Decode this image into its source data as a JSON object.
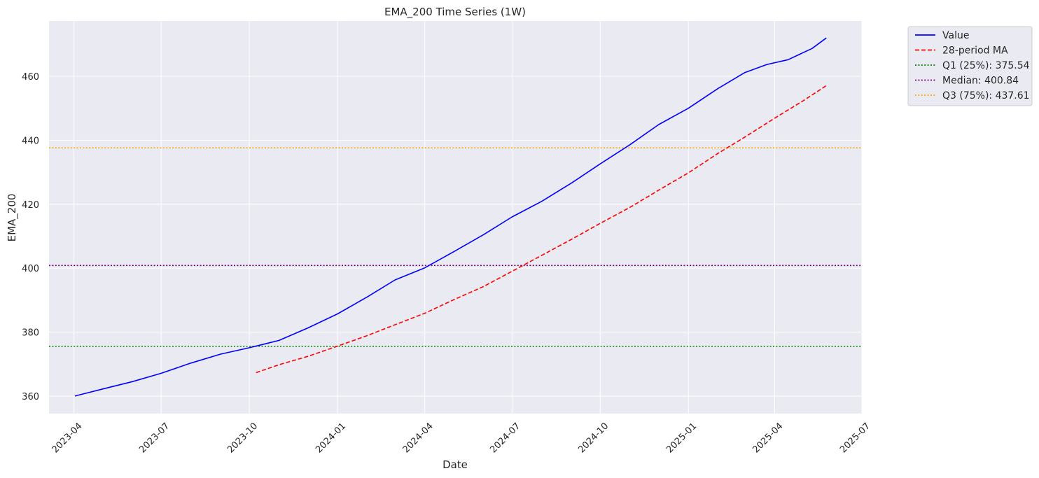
{
  "chart_data": {
    "type": "line",
    "title": "EMA_200 Time Series (1W)",
    "xlabel": "Date",
    "ylabel": "EMA_200",
    "xlim": [
      "2023-03-06",
      "2025-07-01"
    ],
    "ylim": [
      354.5,
      477.3
    ],
    "x_ticks": [
      "2023-04",
      "2023-07",
      "2023-10",
      "2024-01",
      "2024-04",
      "2024-07",
      "2024-10",
      "2025-01",
      "2025-04",
      "2025-07"
    ],
    "y_ticks": [
      360,
      380,
      400,
      420,
      440,
      460
    ],
    "grid": true,
    "legend_position": "outside-top-right",
    "series": [
      {
        "name": "Value",
        "color": "#0000ff",
        "style": "solid",
        "x": [
          "2023-04-02",
          "2023-05-01",
          "2023-06-01",
          "2023-07-01",
          "2023-08-01",
          "2023-09-01",
          "2023-10-01",
          "2023-11-01",
          "2023-12-01",
          "2024-01-01",
          "2024-02-01",
          "2024-03-01",
          "2024-04-01",
          "2024-05-01",
          "2024-06-01",
          "2024-07-01",
          "2024-08-01",
          "2024-09-01",
          "2024-10-01",
          "2024-11-01",
          "2024-12-01",
          "2025-01-01",
          "2025-02-01",
          "2025-03-01",
          "2025-03-24",
          "2025-04-15",
          "2025-05-10",
          "2025-05-25"
        ],
        "y": [
          360.0,
          362.2,
          364.5,
          367.1,
          370.3,
          373.1,
          375.1,
          377.4,
          381.3,
          385.7,
          391.0,
          396.3,
          400.1,
          405.1,
          410.4,
          416.0,
          420.9,
          426.6,
          432.6,
          438.6,
          444.9,
          450.0,
          456.2,
          461.2,
          463.7,
          465.2,
          468.7,
          472.0
        ]
      },
      {
        "name": "28-period MA",
        "color": "#ff0000",
        "style": "dashed",
        "x": [
          "2023-10-08",
          "2023-11-01",
          "2023-12-01",
          "2024-01-01",
          "2024-02-01",
          "2024-03-01",
          "2024-04-01",
          "2024-05-01",
          "2024-06-01",
          "2024-07-01",
          "2024-08-01",
          "2024-09-01",
          "2024-10-01",
          "2024-11-01",
          "2024-12-01",
          "2025-01-01",
          "2025-02-01",
          "2025-03-01",
          "2025-04-01",
          "2025-05-01",
          "2025-05-25"
        ],
        "y": [
          367.3,
          369.8,
          372.4,
          375.6,
          378.9,
          382.3,
          385.9,
          390.1,
          394.2,
          399.0,
          404.0,
          409.0,
          414.0,
          419.0,
          424.4,
          429.8,
          435.9,
          441.0,
          446.9,
          452.4,
          457.1
        ]
      }
    ],
    "reference_lines": [
      {
        "name": "Q1 (25%): 375.54",
        "value": 375.54,
        "color": "#008000",
        "style": "dotted"
      },
      {
        "name": "Median: 400.84",
        "value": 400.84,
        "color": "#800080",
        "style": "dotted"
      },
      {
        "name": "Q3 (75%): 437.61",
        "value": 437.61,
        "color": "#ffa500",
        "style": "dotted"
      }
    ]
  }
}
